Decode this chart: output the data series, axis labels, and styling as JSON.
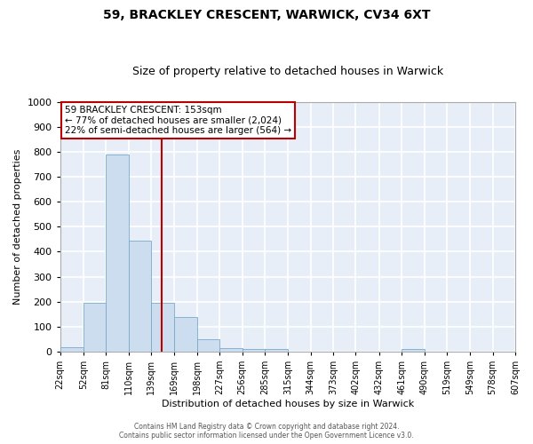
{
  "title": "59, BRACKLEY CRESCENT, WARWICK, CV34 6XT",
  "subtitle": "Size of property relative to detached houses in Warwick",
  "xlabel": "Distribution of detached houses by size in Warwick",
  "ylabel": "Number of detached properties",
  "bar_color": "#ccddef",
  "bar_edge_color": "#7aaac8",
  "background_color": "#e8eef8",
  "grid_color": "#ffffff",
  "fig_background": "#ffffff",
  "vline_color": "#bb0000",
  "vline_x": 153,
  "bin_edges": [
    22,
    52,
    81,
    110,
    139,
    169,
    198,
    227,
    256,
    285,
    315,
    344,
    373,
    402,
    432,
    461,
    490,
    519,
    549,
    578,
    607
  ],
  "bar_heights": [
    18,
    195,
    790,
    445,
    195,
    140,
    50,
    15,
    12,
    12,
    0,
    0,
    0,
    0,
    0,
    12,
    0,
    0,
    0,
    0
  ],
  "ylim": [
    0,
    1000
  ],
  "yticks": [
    0,
    100,
    200,
    300,
    400,
    500,
    600,
    700,
    800,
    900,
    1000
  ],
  "xtick_labels": [
    "22sqm",
    "52sqm",
    "81sqm",
    "110sqm",
    "139sqm",
    "169sqm",
    "198sqm",
    "227sqm",
    "256sqm",
    "285sqm",
    "315sqm",
    "344sqm",
    "373sqm",
    "402sqm",
    "432sqm",
    "461sqm",
    "490sqm",
    "519sqm",
    "549sqm",
    "578sqm",
    "607sqm"
  ],
  "annotation_title": "59 BRACKLEY CRESCENT: 153sqm",
  "annotation_line1": "← 77% of detached houses are smaller (2,024)",
  "annotation_line2": "22% of semi-detached houses are larger (564) →",
  "annotation_box_facecolor": "#ffffff",
  "annotation_box_edgecolor": "#bb0000",
  "footer_line1": "Contains HM Land Registry data © Crown copyright and database right 2024.",
  "footer_line2": "Contains public sector information licensed under the Open Government Licence v3.0.",
  "title_fontsize": 10,
  "subtitle_fontsize": 9,
  "ylabel_fontsize": 8,
  "xlabel_fontsize": 8,
  "ytick_fontsize": 8,
  "xtick_fontsize": 7,
  "footer_fontsize": 5.5,
  "annotation_fontsize": 7.5
}
